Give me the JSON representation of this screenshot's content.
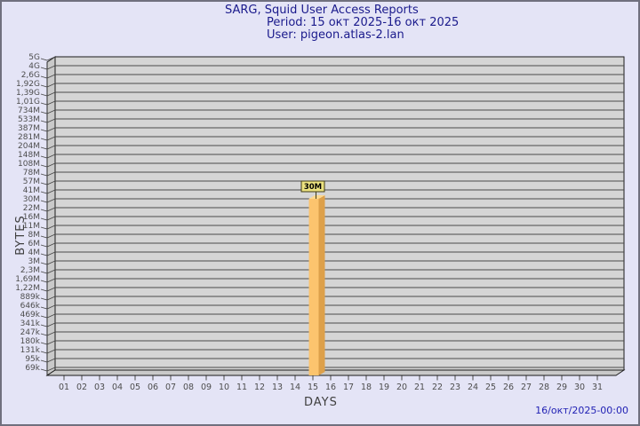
{
  "chart_data": {
    "type": "bar",
    "title": "SARG, Squid User Access Reports",
    "subtitle_period": "Period: 15 окт 2025-16 окт 2025",
    "subtitle_user": "User: pigeon.atlas-2.lan",
    "xlabel": "DAYS",
    "ylabel": "BYTES",
    "footer_timestamp": "16/окт/2025-00:00",
    "y_tick_labels": [
      "5G",
      "4G",
      "2,6G",
      "1,92G",
      "1,39G",
      "1,01G",
      "734M",
      "533M",
      "387M",
      "281M",
      "204M",
      "148M",
      "108M",
      "78M",
      "57M",
      "41M",
      "30M",
      "22M",
      "16M",
      "11M",
      "8M",
      "6M",
      "4M",
      "3M",
      "2,3M",
      "1,69M",
      "1,22M",
      "889k",
      "646k",
      "469k",
      "341k",
      "247k",
      "180k",
      "131k",
      "95k",
      "69k"
    ],
    "x_categories": [
      "01",
      "02",
      "03",
      "04",
      "05",
      "06",
      "07",
      "08",
      "09",
      "10",
      "11",
      "12",
      "13",
      "14",
      "15",
      "16",
      "17",
      "18",
      "19",
      "20",
      "21",
      "22",
      "23",
      "24",
      "25",
      "26",
      "27",
      "28",
      "29",
      "30",
      "31"
    ],
    "bars": [
      {
        "day": "15",
        "value": "30M"
      }
    ],
    "legend": null,
    "grid": "horizontal",
    "colors": {
      "background": "#e4e4f6",
      "border": "#70707e",
      "plot_bg": "#d5d5d5",
      "wall": "#c9c9c9",
      "grid": "#4a4a4a",
      "edge": "#1a1a1a",
      "bar_front": "#fcc46e",
      "bar_side": "#dda04a",
      "bar_top": "#ffd98f",
      "title_text": "#1a1a8c",
      "axis_text": "#4d4d4d",
      "footer_text": "#2121b4",
      "bar_label_bg": "#ece27f",
      "bar_label_border": "#3f3b16",
      "bar_label_text": "#000000"
    }
  }
}
